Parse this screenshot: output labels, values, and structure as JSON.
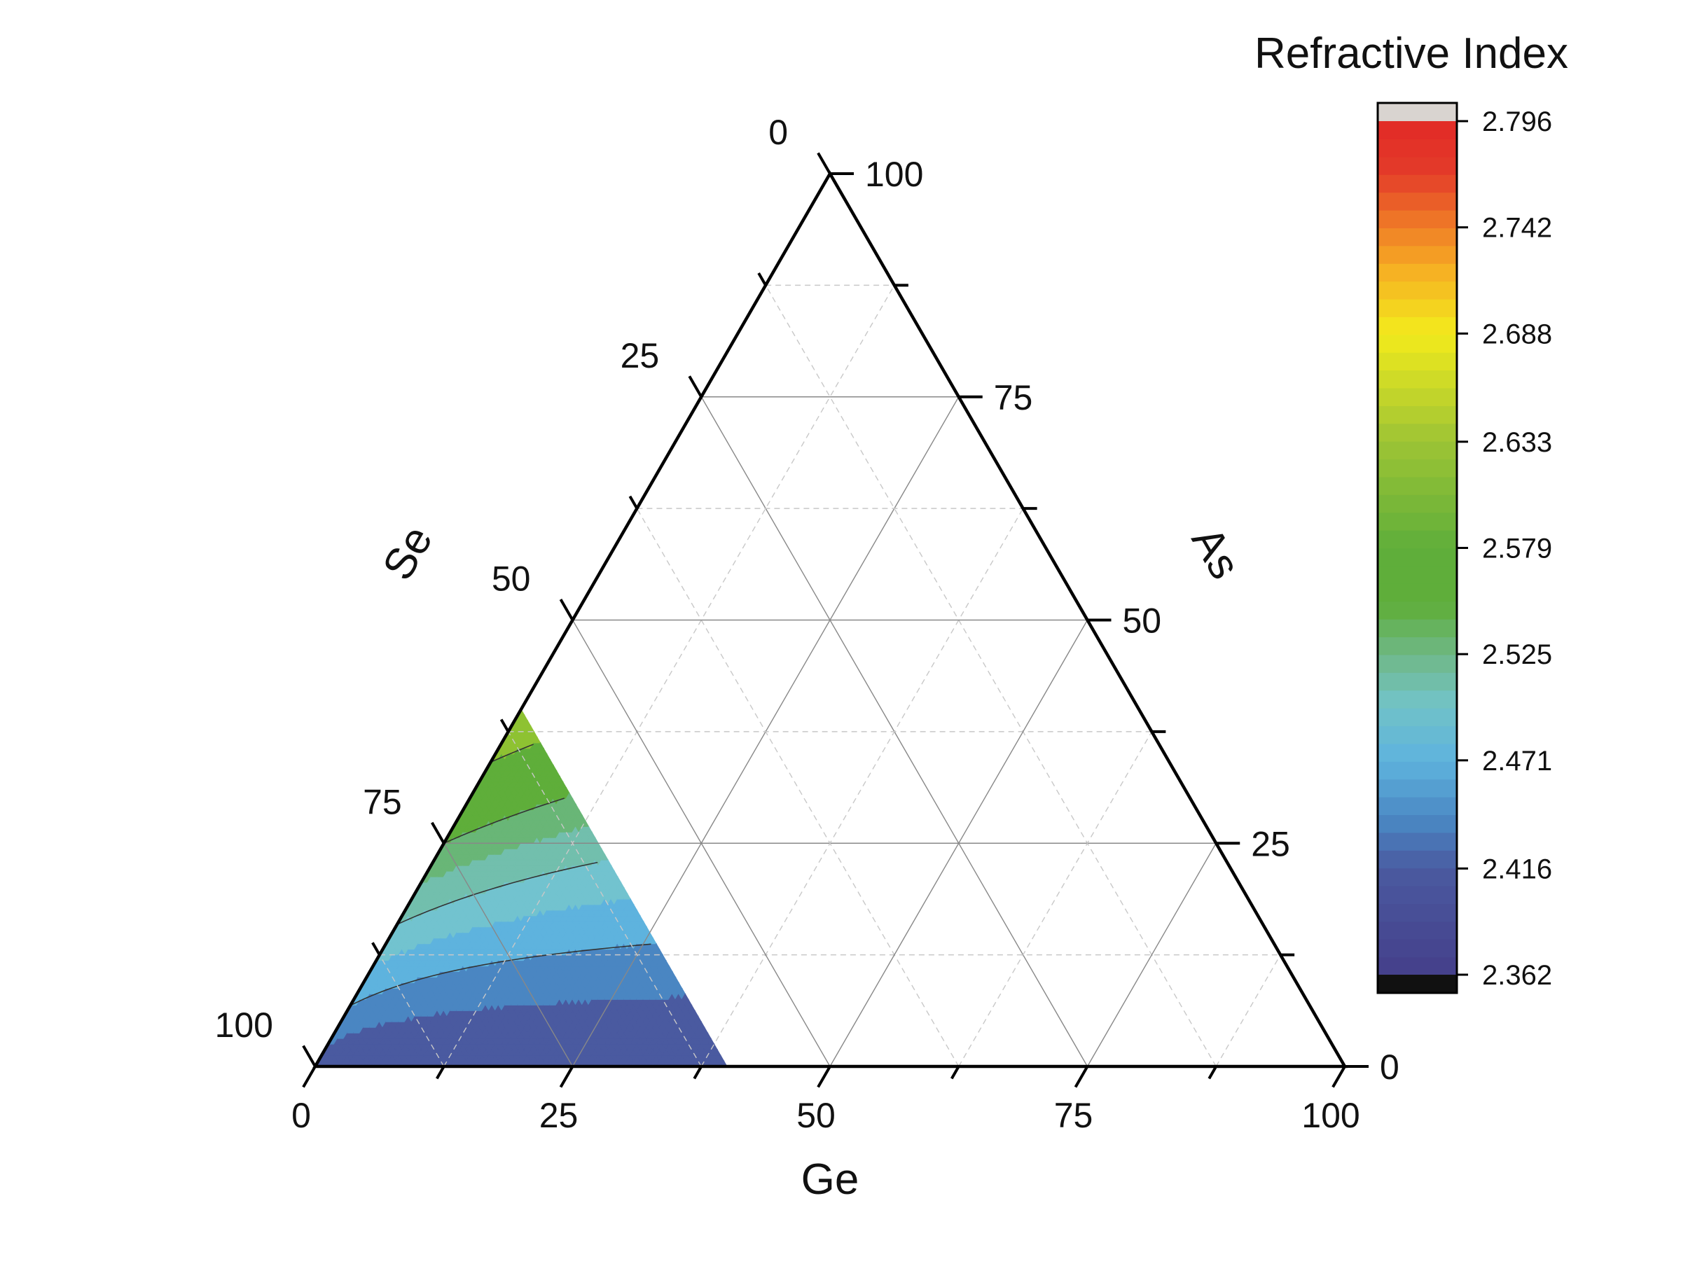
{
  "chart_data": {
    "type": "ternary-contour",
    "title": "",
    "axes": {
      "bottom": {
        "label": "Ge",
        "ticks": [
          "0",
          "25",
          "50",
          "75",
          "100"
        ]
      },
      "left": {
        "label": "Se",
        "ticks": [
          "100",
          "75",
          "50",
          "25",
          "0"
        ]
      },
      "right": {
        "label": "As",
        "ticks": [
          "0",
          "25",
          "50",
          "75",
          "100"
        ]
      }
    },
    "grid": {
      "major_step": 25,
      "minor_step": 12.5,
      "major_color": "#888888",
      "minor_color": "#c8c8c8"
    },
    "colorbar": {
      "title": "Refractive Index",
      "min": 2.362,
      "max": 2.796,
      "tick_labels": [
        "2.796",
        "2.742",
        "2.688",
        "2.633",
        "2.579",
        "2.525",
        "2.471",
        "2.416",
        "2.362"
      ],
      "over_color": "#d9d4d0",
      "under_color": "#111111"
    },
    "bands": [
      {
        "v": 2.4,
        "color": "#453f8a"
      },
      {
        "v": 2.42,
        "color": "#4a5aa0"
      },
      {
        "v": 2.44,
        "color": "#4a86c2"
      },
      {
        "v": 2.46,
        "color": "#5eb3de"
      },
      {
        "v": 2.48,
        "color": "#72c3cf"
      },
      {
        "v": 2.5,
        "color": "#72bfad"
      },
      {
        "v": 2.52,
        "color": "#69b677"
      },
      {
        "v": 2.56,
        "color": "#5fae3a"
      },
      {
        "v": 2.63,
        "color": "#8ec232"
      },
      {
        "v": 2.69,
        "color": "#f0ea1e"
      },
      {
        "v": 2.73,
        "color": "#f5a423"
      },
      {
        "v": 2.77,
        "color": "#e2402c"
      }
    ],
    "region_vertices": [
      {
        "ge": 0,
        "as": 0
      },
      {
        "ge": 40,
        "as": 0
      },
      {
        "ge": 0,
        "as": 40
      }
    ],
    "contour_levels": [
      2.44,
      2.48,
      2.52,
      2.56,
      2.63,
      2.69,
      2.73,
      2.77
    ],
    "contour_color": "#333333",
    "colorbar_stops": [
      {
        "v": 2.362,
        "color": "#453f8a"
      },
      {
        "v": 2.416,
        "color": "#4a5aa0"
      },
      {
        "v": 2.44,
        "color": "#4a86c2"
      },
      {
        "v": 2.471,
        "color": "#5eb3de"
      },
      {
        "v": 2.5,
        "color": "#72c3c6"
      },
      {
        "v": 2.525,
        "color": "#6fb886"
      },
      {
        "v": 2.55,
        "color": "#5fae3a"
      },
      {
        "v": 2.579,
        "color": "#5fae3a"
      },
      {
        "v": 2.633,
        "color": "#9dc435"
      },
      {
        "v": 2.688,
        "color": "#f3eb1c"
      },
      {
        "v": 2.72,
        "color": "#f6b023"
      },
      {
        "v": 2.742,
        "color": "#f07e27"
      },
      {
        "v": 2.77,
        "color": "#e33b2a"
      },
      {
        "v": 2.796,
        "color": "#e22a26"
      }
    ]
  }
}
